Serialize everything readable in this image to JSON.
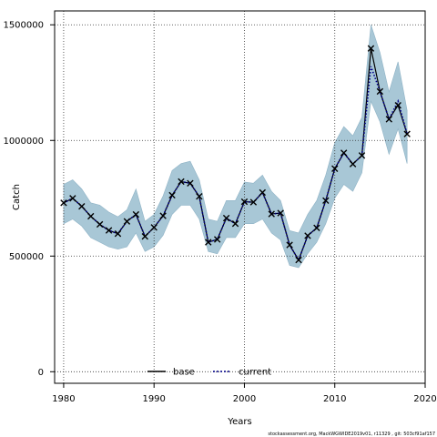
{
  "chart_data": {
    "type": "line",
    "title": "",
    "xlabel": "Years",
    "ylabel": "Catch",
    "xlim": [
      1979,
      2020
    ],
    "ylim": [
      -50000,
      1560000
    ],
    "xticks": [
      1980,
      1990,
      2000,
      2010,
      2020
    ],
    "yticks": [
      0,
      500000,
      1000000,
      1500000
    ],
    "xtick_labels": [
      "1980",
      "1990",
      "2000",
      "2010",
      "2020"
    ],
    "ytick_labels": [
      "0",
      "500000",
      "1000000",
      "1500000"
    ],
    "grid": true,
    "legend_position": "bottom-center",
    "x": [
      1980,
      1981,
      1982,
      1983,
      1984,
      1985,
      1986,
      1987,
      1988,
      1989,
      1990,
      1991,
      1992,
      1993,
      1994,
      1995,
      1996,
      1997,
      1998,
      1999,
      2000,
      2001,
      2002,
      2003,
      2004,
      2005,
      2006,
      2007,
      2008,
      2009,
      2010,
      2011,
      2012,
      2013,
      2014,
      2015,
      2016,
      2017,
      2018
    ],
    "series": [
      {
        "name": "base",
        "style": "solid",
        "color": "#000000",
        "values": [
          730000,
          750000,
          715000,
          672000,
          637000,
          611000,
          597000,
          650000,
          680000,
          585000,
          624000,
          674000,
          763000,
          822000,
          815000,
          758000,
          560000,
          572000,
          664000,
          640000,
          735000,
          733000,
          775000,
          682000,
          686000,
          548000,
          483000,
          588000,
          622000,
          740000,
          878000,
          946000,
          898000,
          935000,
          1398000,
          1212000,
          1092000,
          1152000,
          1028000
        ]
      },
      {
        "name": "current",
        "style": "dotted",
        "color": "#00008b",
        "values": [
          730000,
          750000,
          715000,
          672000,
          637000,
          611000,
          597000,
          650000,
          680000,
          585000,
          624000,
          674000,
          763000,
          822000,
          815000,
          758000,
          560000,
          572000,
          664000,
          640000,
          735000,
          733000,
          775000,
          682000,
          686000,
          548000,
          483000,
          588000,
          622000,
          740000,
          878000,
          946000,
          898000,
          935000,
          1320000,
          1212000,
          1092000,
          1170000,
          1028000
        ]
      }
    ],
    "observed_points": [
      730000,
      750000,
      715000,
      672000,
      637000,
      611000,
      597000,
      650000,
      680000,
      585000,
      624000,
      674000,
      763000,
      822000,
      815000,
      758000,
      560000,
      572000,
      664000,
      640000,
      735000,
      733000,
      775000,
      682000,
      686000,
      548000,
      483000,
      588000,
      622000,
      740000,
      878000,
      946000,
      898000,
      935000,
      1398000,
      1212000,
      1092000,
      1152000,
      1028000
    ],
    "band": {
      "color": "#a3c4d4",
      "upper": [
        810000,
        830000,
        790000,
        730000,
        720000,
        690000,
        670000,
        700000,
        790000,
        650000,
        680000,
        760000,
        870000,
        900000,
        910000,
        830000,
        660000,
        650000,
        740000,
        740000,
        820000,
        815000,
        850000,
        780000,
        740000,
        610000,
        600000,
        680000,
        740000,
        850000,
        990000,
        1060000,
        1020000,
        1100000,
        1500000,
        1380000,
        1210000,
        1340000,
        1130000
      ],
      "lower": [
        640000,
        660000,
        630000,
        580000,
        560000,
        540000,
        530000,
        540000,
        600000,
        520000,
        540000,
        590000,
        680000,
        720000,
        720000,
        660000,
        520000,
        510000,
        580000,
        580000,
        640000,
        640000,
        660000,
        600000,
        570000,
        460000,
        450000,
        510000,
        560000,
        640000,
        750000,
        810000,
        780000,
        860000,
        1170000,
        1080000,
        940000,
        1050000,
        900000
      ]
    },
    "footer": "stockassessment.org, MackWGWIDE2019v01, r11329 , git: 503cf91af157"
  }
}
